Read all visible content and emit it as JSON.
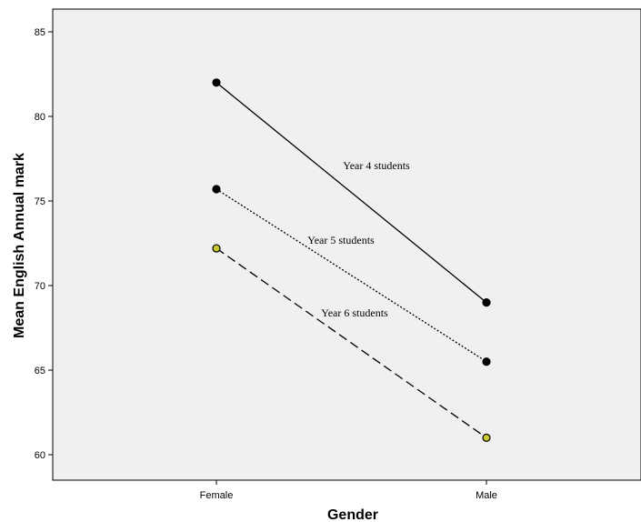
{
  "chart_data": {
    "type": "line",
    "categories": [
      "Female",
      "Male"
    ],
    "xlabel": "Gender",
    "ylabel": "Mean English Annual mark",
    "ylim": [
      59,
      86
    ],
    "yticks": [
      60,
      65,
      70,
      75,
      80,
      85
    ],
    "grid": false,
    "background": "#f0f0f0",
    "series": [
      {
        "name": "Year 4 students",
        "values": [
          82.0,
          69.0
        ],
        "dash": "solid",
        "marker_fill": "#000000"
      },
      {
        "name": "Year 5 students",
        "values": [
          75.7,
          65.5
        ],
        "dash": "dotted",
        "marker_fill": "#000000"
      },
      {
        "name": "Year 6 students",
        "values": [
          72.2,
          61.0
        ],
        "dash": "dashed",
        "marker_fill": "#c8c832"
      }
    ]
  }
}
